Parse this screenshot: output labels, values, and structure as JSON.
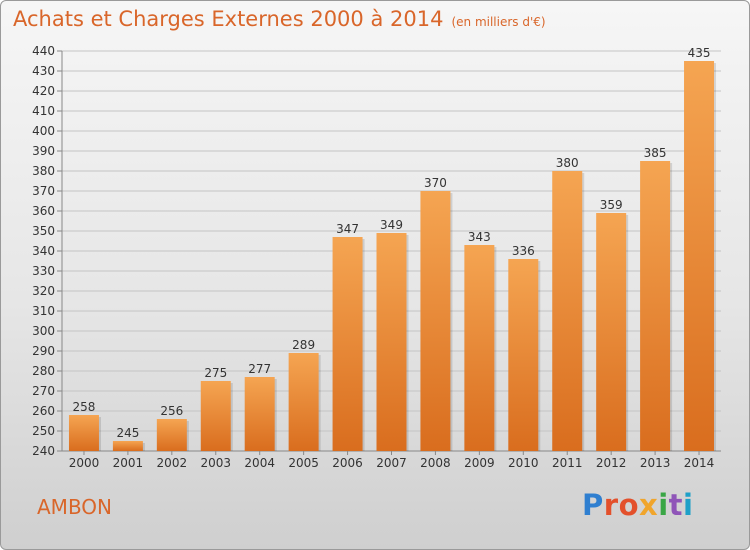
{
  "chart_data": {
    "type": "bar",
    "title": "Achats et Charges Externes 2000 à 2014",
    "subtitle": "(en milliers d'€)",
    "categories": [
      "2000",
      "2001",
      "2002",
      "2003",
      "2004",
      "2005",
      "2006",
      "2007",
      "2008",
      "2009",
      "2010",
      "2011",
      "2012",
      "2013",
      "2014"
    ],
    "values": [
      258,
      245,
      256,
      275,
      277,
      289,
      347,
      349,
      370,
      343,
      336,
      380,
      359,
      385,
      435
    ],
    "ylim": [
      240,
      440
    ],
    "yticks": [
      240,
      250,
      260,
      270,
      280,
      290,
      300,
      310,
      320,
      330,
      340,
      350,
      360,
      370,
      380,
      390,
      400,
      410,
      420,
      430,
      440
    ],
    "grid": true,
    "legend": "none",
    "bar_color_top": "#f5a552",
    "bar_color_bottom": "#d96d1e"
  },
  "commune": "AMBON",
  "logo": {
    "parts": [
      "P",
      "ro",
      "x",
      "i",
      "t",
      "i"
    ]
  }
}
